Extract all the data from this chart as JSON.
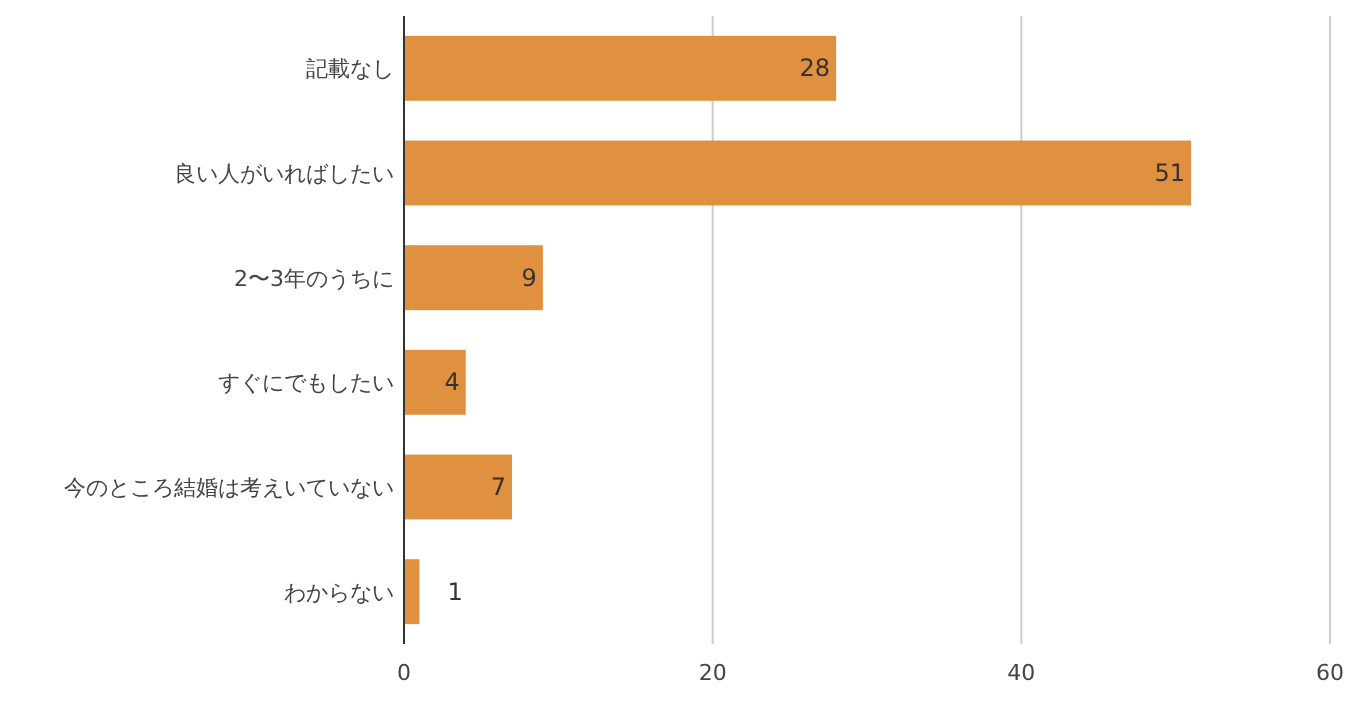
{
  "chart_data": {
    "type": "bar",
    "orientation": "horizontal",
    "categories": [
      "記載なし",
      "良い人がいればしたい",
      "2〜3年のうちに",
      "すぐにでもしたい",
      "今のところ結婚は考えいていない",
      "わからない"
    ],
    "values": [
      28,
      51,
      9,
      4,
      7,
      1
    ],
    "color": "#e0913f",
    "xlim": [
      0,
      60
    ],
    "xticks": [
      0,
      20,
      40,
      60
    ],
    "grid": "x",
    "data_labels": true
  }
}
